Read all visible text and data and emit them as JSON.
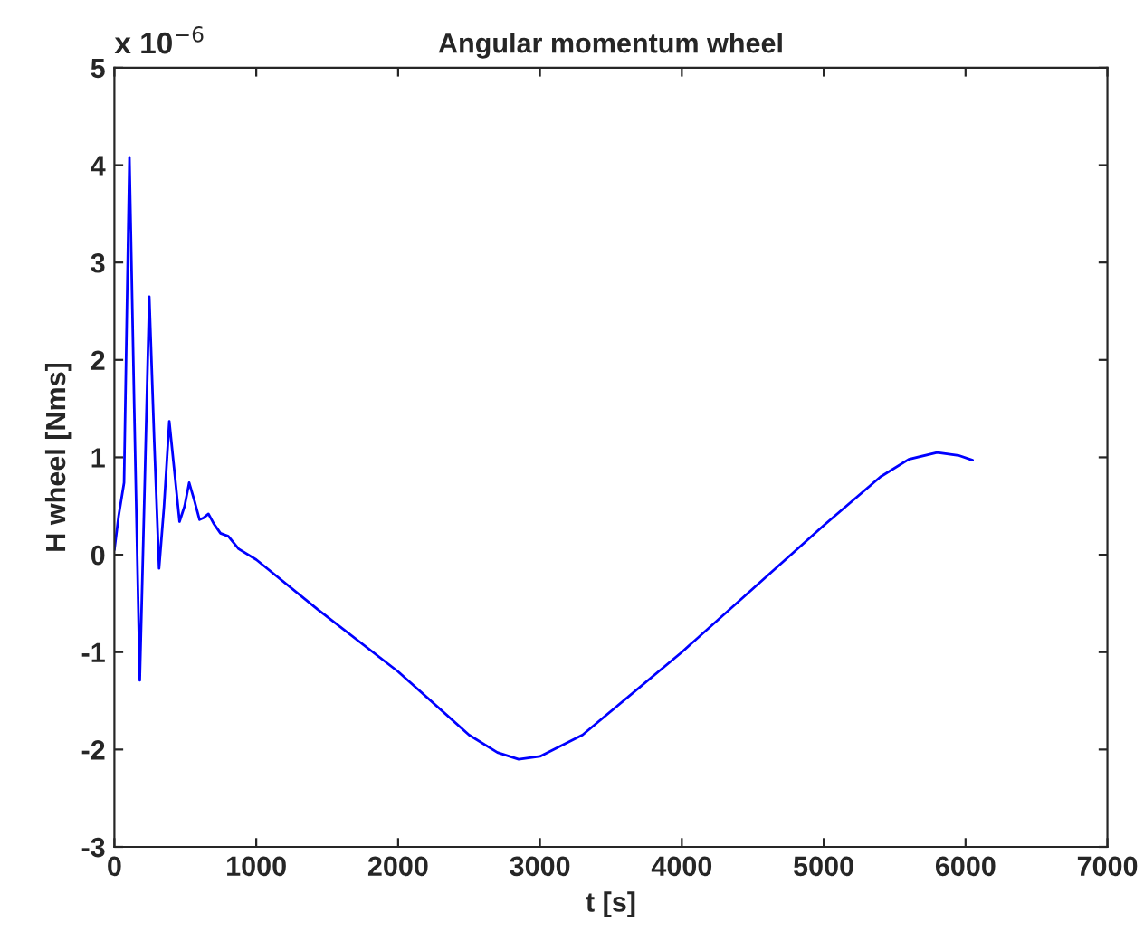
{
  "chart_data": {
    "type": "line",
    "title": "Angular momentum wheel",
    "xlabel": "t [s]",
    "ylabel": "H wheel [Nms]",
    "annotations": [
      "x 10$^{−6}$"
    ],
    "series": [
      {
        "color": "#0000ff",
        "x": [
          0,
          30,
          68,
          106,
          140,
          179,
          215,
          246,
          280,
          315,
          350,
          387,
          420,
          459,
          495,
          527,
          565,
          600,
          630,
          663,
          700,
          748,
          803,
          876,
          1000,
          1432,
          2000,
          2500,
          2700,
          2850,
          3000,
          3300,
          4000,
          4500,
          5000,
          5400,
          5600,
          5800,
          5950,
          6050
        ],
        "values": [
          0.05,
          0.4,
          0.74,
          4.08,
          1.5,
          -1.29,
          0.8,
          2.65,
          1.2,
          -0.14,
          0.5,
          1.37,
          0.9,
          0.34,
          0.5,
          0.74,
          0.55,
          0.36,
          0.38,
          0.42,
          0.32,
          0.22,
          0.19,
          0.06,
          -0.05,
          -0.56,
          -1.2,
          -1.85,
          -2.03,
          -2.1,
          -2.07,
          -1.85,
          -1.0,
          -0.35,
          0.3,
          0.8,
          0.98,
          1.05,
          1.02,
          0.97
        ]
      }
    ],
    "xlim": [
      0,
      7000
    ],
    "xticks": [
      0,
      1000,
      2000,
      3000,
      4000,
      5000,
      6000,
      7000
    ],
    "ylim": [
      -3,
      5
    ],
    "yticks": [
      -3,
      -2,
      -1,
      0,
      1,
      2,
      3,
      4,
      5
    ],
    "grid": false,
    "legend": false
  }
}
